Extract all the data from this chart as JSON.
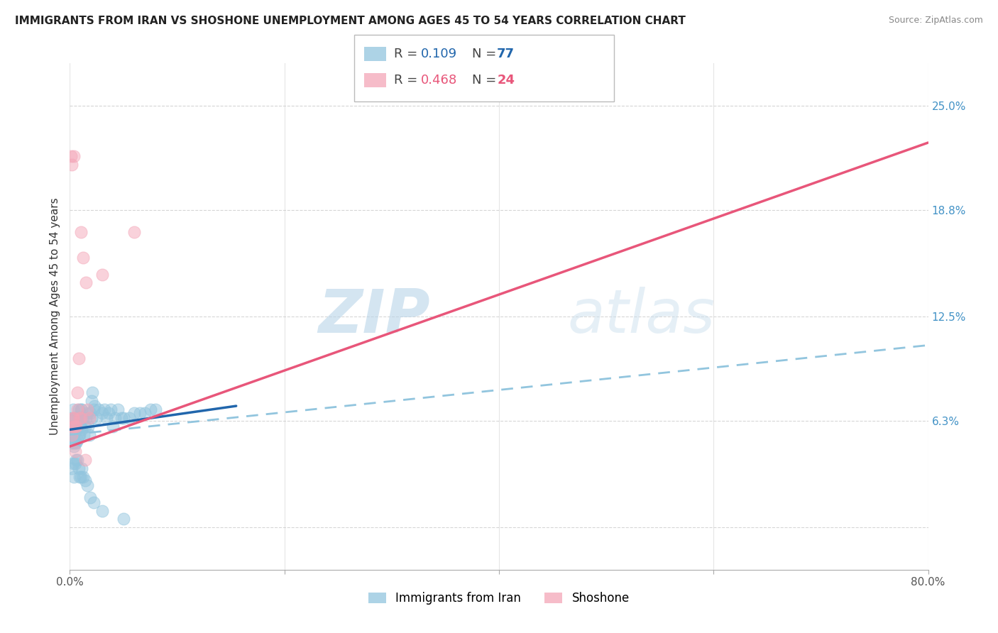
{
  "title": "IMMIGRANTS FROM IRAN VS SHOSHONE UNEMPLOYMENT AMONG AGES 45 TO 54 YEARS CORRELATION CHART",
  "source": "Source: ZipAtlas.com",
  "ylabel": "Unemployment Among Ages 45 to 54 years",
  "ytick_labels": [
    "",
    "6.3%",
    "12.5%",
    "18.8%",
    "25.0%"
  ],
  "ytick_values": [
    0.0,
    0.063,
    0.125,
    0.188,
    0.25
  ],
  "xlim": [
    0.0,
    0.8
  ],
  "ylim": [
    -0.025,
    0.275
  ],
  "legend1_r": "0.109",
  "legend1_n": "77",
  "legend2_r": "0.468",
  "legend2_n": "24",
  "color_blue": "#92c5de",
  "color_pink": "#f4a6b8",
  "line_blue": "#2166ac",
  "line_pink": "#e8567a",
  "line_blue_dash": "#92c5de",
  "watermark_zip": "ZIP",
  "watermark_atlas": "atlas",
  "iran_scatter_x": [
    0.001,
    0.001,
    0.002,
    0.002,
    0.002,
    0.002,
    0.003,
    0.003,
    0.003,
    0.003,
    0.004,
    0.004,
    0.004,
    0.005,
    0.005,
    0.005,
    0.006,
    0.006,
    0.006,
    0.007,
    0.007,
    0.008,
    0.008,
    0.009,
    0.009,
    0.01,
    0.01,
    0.011,
    0.011,
    0.012,
    0.013,
    0.014,
    0.015,
    0.016,
    0.017,
    0.018,
    0.019,
    0.02,
    0.02,
    0.021,
    0.022,
    0.023,
    0.025,
    0.027,
    0.03,
    0.032,
    0.034,
    0.036,
    0.038,
    0.04,
    0.042,
    0.045,
    0.048,
    0.05,
    0.055,
    0.06,
    0.065,
    0.07,
    0.075,
    0.08,
    0.002,
    0.003,
    0.004,
    0.005,
    0.006,
    0.007,
    0.008,
    0.009,
    0.01,
    0.011,
    0.012,
    0.014,
    0.016,
    0.019,
    0.022,
    0.03,
    0.05
  ],
  "iran_scatter_y": [
    0.055,
    0.06,
    0.05,
    0.055,
    0.06,
    0.065,
    0.05,
    0.055,
    0.06,
    0.07,
    0.048,
    0.055,
    0.06,
    0.05,
    0.06,
    0.065,
    0.05,
    0.058,
    0.065,
    0.052,
    0.065,
    0.055,
    0.07,
    0.055,
    0.065,
    0.06,
    0.07,
    0.058,
    0.07,
    0.065,
    0.055,
    0.06,
    0.065,
    0.068,
    0.06,
    0.055,
    0.068,
    0.065,
    0.075,
    0.08,
    0.07,
    0.072,
    0.065,
    0.07,
    0.068,
    0.07,
    0.065,
    0.068,
    0.07,
    0.06,
    0.065,
    0.07,
    0.065,
    0.065,
    0.065,
    0.068,
    0.068,
    0.068,
    0.07,
    0.07,
    0.035,
    0.038,
    0.03,
    0.038,
    0.04,
    0.04,
    0.035,
    0.03,
    0.03,
    0.035,
    0.03,
    0.028,
    0.025,
    0.018,
    0.015,
    0.01,
    0.005
  ],
  "shoshone_scatter_x": [
    0.001,
    0.002,
    0.003,
    0.003,
    0.004,
    0.005,
    0.006,
    0.007,
    0.008,
    0.009,
    0.01,
    0.012,
    0.014,
    0.016,
    0.018,
    0.002,
    0.003,
    0.004,
    0.005,
    0.007,
    0.01,
    0.015,
    0.03,
    0.06
  ],
  "shoshone_scatter_y": [
    0.22,
    0.215,
    0.06,
    0.065,
    0.22,
    0.06,
    0.06,
    0.07,
    0.1,
    0.065,
    0.175,
    0.16,
    0.04,
    0.07,
    0.065,
    0.055,
    0.065,
    0.06,
    0.045,
    0.08,
    0.065,
    0.145,
    0.15,
    0.175
  ],
  "iran_solid_line_x": [
    0.0,
    0.155
  ],
  "iran_solid_line_y": [
    0.058,
    0.072
  ],
  "iran_dash_line_x": [
    0.0,
    0.8
  ],
  "iran_dash_line_y": [
    0.055,
    0.108
  ],
  "shoshone_solid_line_x": [
    0.0,
    0.8
  ],
  "shoshone_solid_line_y": [
    0.048,
    0.228
  ]
}
